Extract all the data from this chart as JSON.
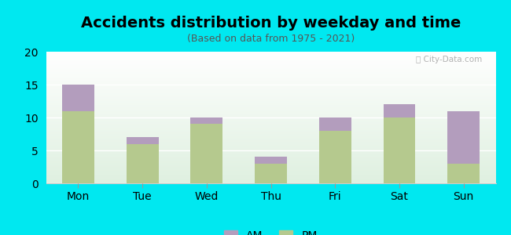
{
  "title": "Accidents distribution by weekday and time",
  "subtitle": "(Based on data from 1975 - 2021)",
  "categories": [
    "Mon",
    "Tue",
    "Wed",
    "Thu",
    "Fri",
    "Sat",
    "Sun"
  ],
  "pm_values": [
    11,
    6,
    9,
    3,
    8,
    10,
    3
  ],
  "am_values": [
    4,
    1,
    1,
    1,
    2,
    2,
    8
  ],
  "pm_color": "#b5c98e",
  "am_color": "#b39dbd",
  "bg_color": "#00e8f0",
  "ylim": [
    0,
    20
  ],
  "yticks": [
    0,
    5,
    10,
    15,
    20
  ],
  "bar_width": 0.5,
  "title_fontsize": 14,
  "subtitle_fontsize": 9,
  "tick_fontsize": 10,
  "legend_fontsize": 10
}
